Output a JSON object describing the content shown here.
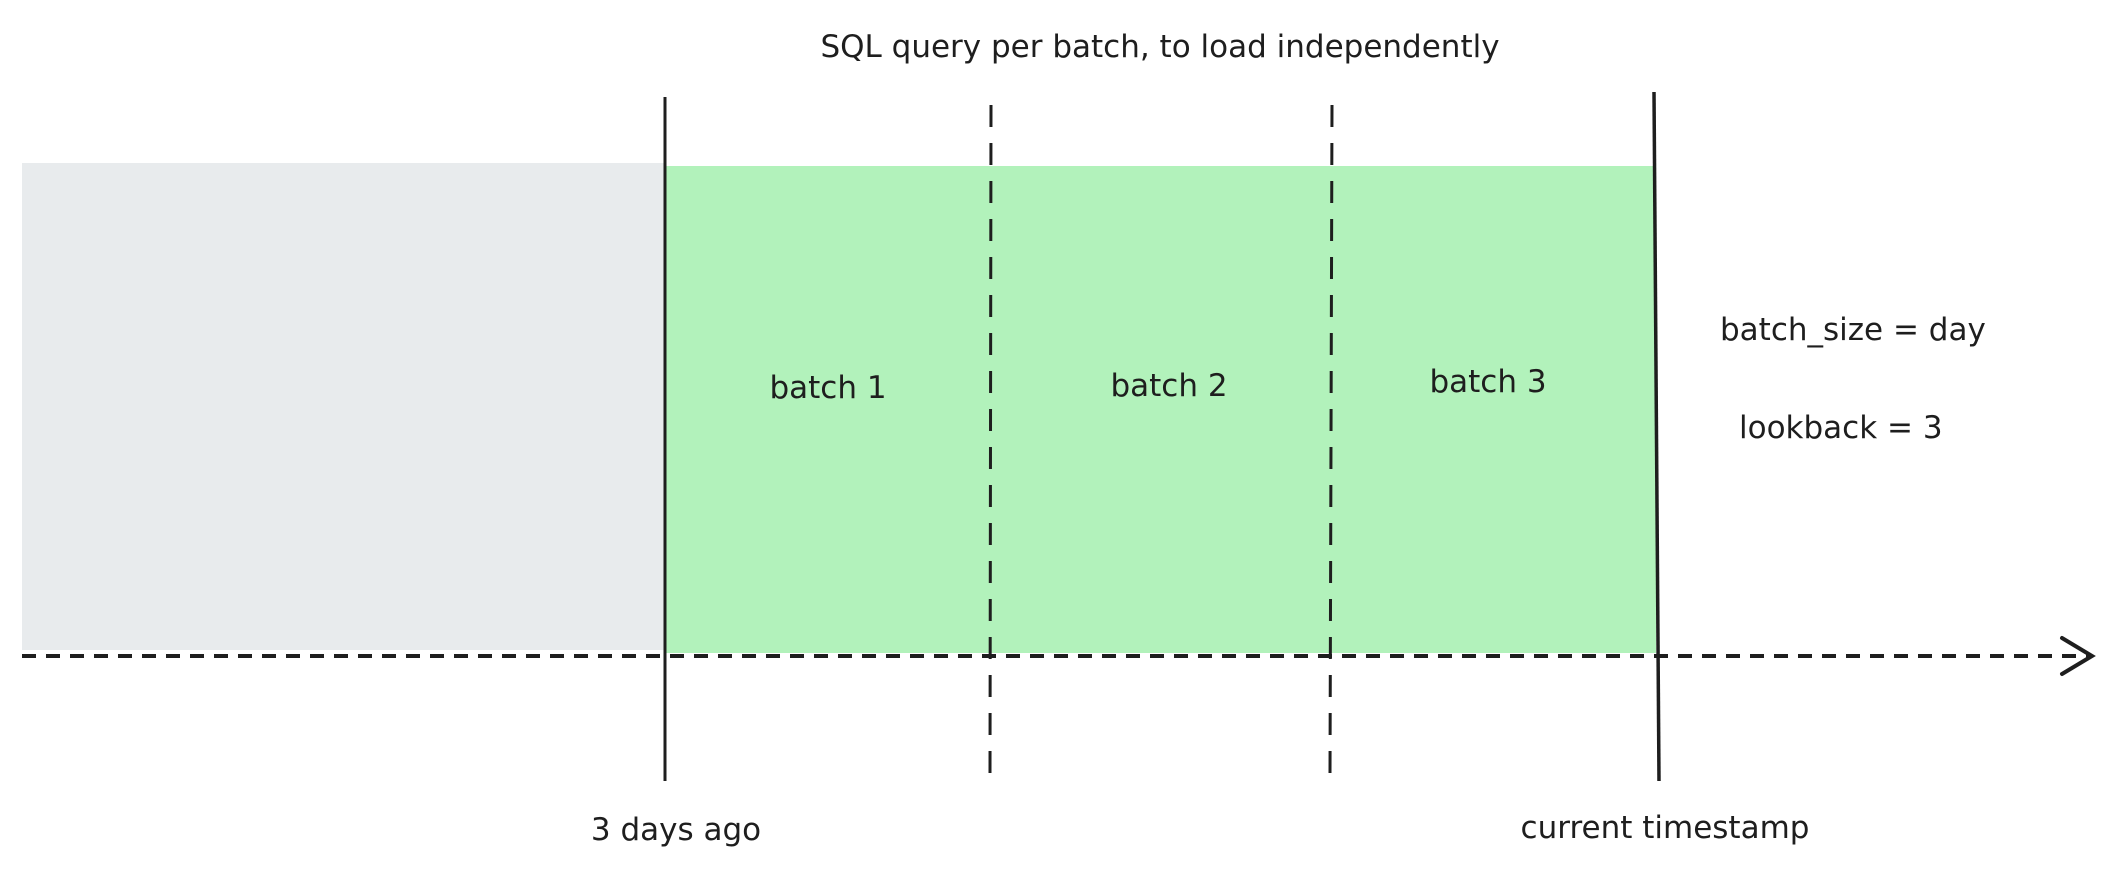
{
  "title": "SQL query per batch, to load independently",
  "batches": [
    "batch 1",
    "batch 2",
    "batch 3"
  ],
  "params": {
    "batch_size": "batch_size = day",
    "lookback": "lookback = 3"
  },
  "markers": {
    "start": "3 days ago",
    "end": "current timestamp"
  },
  "colors": {
    "past_region": "#e8ebed",
    "batch_region": "#b2f2bb",
    "stroke": "#1e1e1e"
  }
}
